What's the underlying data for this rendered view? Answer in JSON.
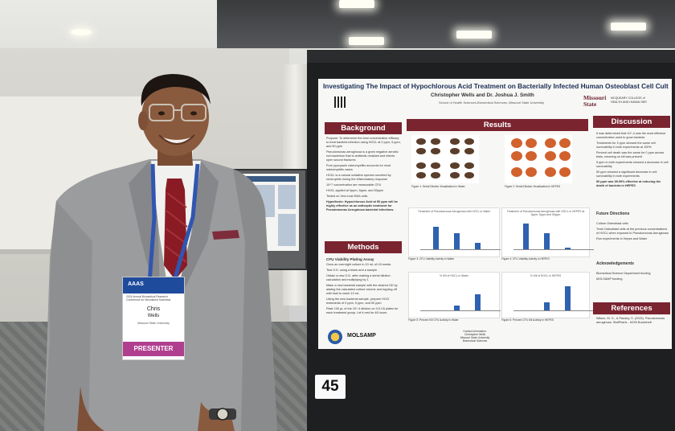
{
  "poster": {
    "title": "Investigating The Impact of Hypochlorous Acid Treatment on Bacterially Infected Human Osteoblast Cell Culture",
    "authors": "Christopher Wells and Dr. Joshua J. Smith",
    "school": "School of Health Sciences-Biomedical Sciences, Missouri State University",
    "logo_right": [
      "Missouri",
      "State"
    ],
    "logo_right_sub": [
      "MCQUEARY COLLEGE of",
      "HEALTH AND HUMAN SER"
    ],
    "sections": {
      "background": "Background",
      "methods": "Methods",
      "results": "Results",
      "discussion": "Discussion",
      "future": "Future Directions",
      "ack": "Acknowledgements",
      "references": "References"
    },
    "background_text": [
      "Purpose: To determine the best concentration efficacy to treat bacteria infection using HOCL at 0 ppm, 5 ppm, and 50 ppm",
      "Pseudomonas aeruginosa is a gram negative aerobic rod bacterium that is antibiotic resistant and infects open wound fractures",
      "Pure pyocyanin osteomyelitis accounts for most osteomyelitis cases",
      "HOCL is a natural oxidative species secreted by neutrophils during the inflammatory response",
      "10^7 concentration are measurable CFU",
      "HOCL applied at 0ppm, 5ppm, and 50ppm",
      "Tested on Vero host EMA cells"
    ],
    "hypothesis": "Hypothesis: Hypochlorous Acid at 50 ppm will be highly effective as an antiseptic treatment for Pseudomonas Aeruginosa bacterial infections.",
    "methods_sub": "CFU Viability Plating Assay",
    "methods_text": [
      "Grow an overnight culture in 10 mL of LB media",
      "Test O.D. using a blank and a sample",
      "Obtain a new O.D. after making a serial dilution calculation and multiplying by 1",
      "Make a new bacterial sample with the desired OD by adding the calculated culture volume and topping off with fluid to reach 10 mL",
      "Using the new bacterial sample, prepare HOCl treatments of 0 ppm, 5 ppm, and 50 ppm",
      "Plate 100 µL of the 10^-4 dilution on 3-5 LB plates for each treatment group. Let it rest for 48 hours."
    ],
    "figure_captions": [
      "Figure 1: Serial Dilution Visualization in Water",
      "Figure 2: Serial Dilution Visualization in HEPES",
      "Figure 3: CFU Viability Activity in Water",
      "Figure 4: CFU Viability Activity in HEPES",
      "Figure 5: Percent Kill CFU Activity in Water",
      "Figure 6: Percent CFU Kill Activity in HEPES"
    ],
    "chart_titles": [
      "Treatment of Pseudomonas Aeruginosa with HOCL in Water",
      "Treatment of Pseudomonas Aeruginosa with HOCL in HEPES at 0ppm, 5ppm and 50ppm",
      "% Kill of HOCL in Water",
      "% Kill of HOCL in HEPES"
    ],
    "discussion_text": [
      "It was determined that 10^-4 was the most effective concentration used to grow bacteria",
      "Treatments for 5 ppm showed the same cell survivability in both experiments at 100%",
      "Percent cell death was the same for 0 ppm across trials, meaning no kill was present",
      "5 ppm in both experiments showed a decrease in cell survivability",
      "50 ppm showed a significant decrease in cell survivability in both experiments",
      "50 ppm was 99.99% effective at reducing the death of bacteria in HEPES"
    ],
    "future_text": [
      "Culture Osteoblast cells",
      "Treat Osteoblast cells at the previous concentrations of HOCL when exposed to Pseudomonas Aeruginosa",
      "Run experiments in Hepes and Water"
    ],
    "ack_text": [
      "Biomedical Science Department funding",
      "MOLSAMP funding"
    ],
    "references_text": "Wilson, M. G., & Pandey, S. (2023). Pseudomonas aeruginosa. StatPearls - NCBI Bookshelf.",
    "footer_logos": [
      "NSF",
      "MOLSAMP"
    ],
    "footer_text": [
      "Contact information:",
      "Christopher Wells",
      "Missouri State University",
      "Biomedical Sciences"
    ]
  },
  "badge": {
    "org": "AAAS",
    "event": "2024 Annual Biomedical Research Conference for Minoritized Scientists",
    "name": "Chris",
    "last": "Wells",
    "school": "Missouri State University",
    "role": "PRESENTER"
  },
  "board_number": "45",
  "colors": {
    "poster_header": "#7a2430",
    "suit": "#9b9c9e",
    "tie": "#8a1b24",
    "board": "#1e1f21"
  }
}
